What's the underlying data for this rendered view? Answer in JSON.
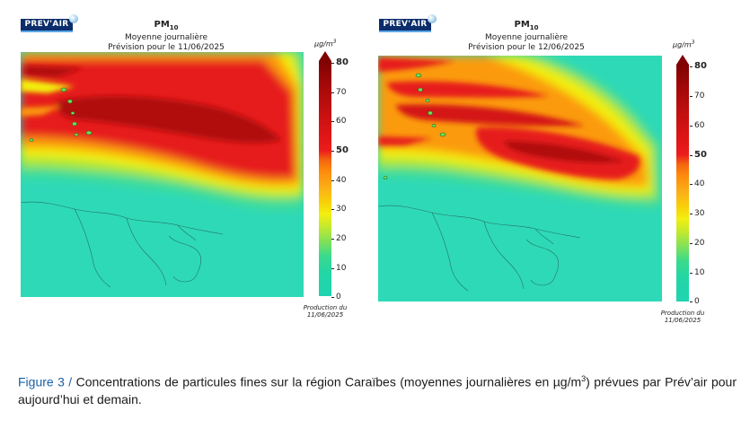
{
  "maps": [
    {
      "logo": "PREV'AIR",
      "title": "PM",
      "title_sub": "10",
      "subtitle": "Moyenne journalière",
      "forecast": "Prévision pour le 11/06/2025",
      "unit": "µg/m",
      "unit_sup": "3",
      "scale": [
        "80",
        "70",
        "60",
        "50",
        "40",
        "30",
        "20",
        "10",
        "0"
      ],
      "production_label": "Production du",
      "production_date": "11/06/2025"
    },
    {
      "logo": "PREV'AIR",
      "title": "PM",
      "title_sub": "10",
      "subtitle": "Moyenne journalière",
      "forecast": "Prévision pour le 12/06/2025",
      "unit": "µg/m",
      "unit_sup": "3",
      "scale": [
        "80",
        "70",
        "60",
        "50",
        "40",
        "30",
        "20",
        "10",
        "0"
      ],
      "production_label": "Production du",
      "production_date": "11/06/2025"
    }
  ],
  "colorscale": {
    "min": 0,
    "max": 80,
    "threshold": 50,
    "low": "#2ed9b8",
    "mid": "#f3ee10",
    "high": "#e31515",
    "max_color": "#800202"
  },
  "caption": {
    "figure_label": "Figure 3 /",
    "text_before_unit": " Concentrations de particules fines sur la région Caraïbes (moyennes journalières en µg/m",
    "unit_sup": "3",
    "text_after_unit": ") prévues par Prév’air pour aujourd’hui et demain."
  }
}
